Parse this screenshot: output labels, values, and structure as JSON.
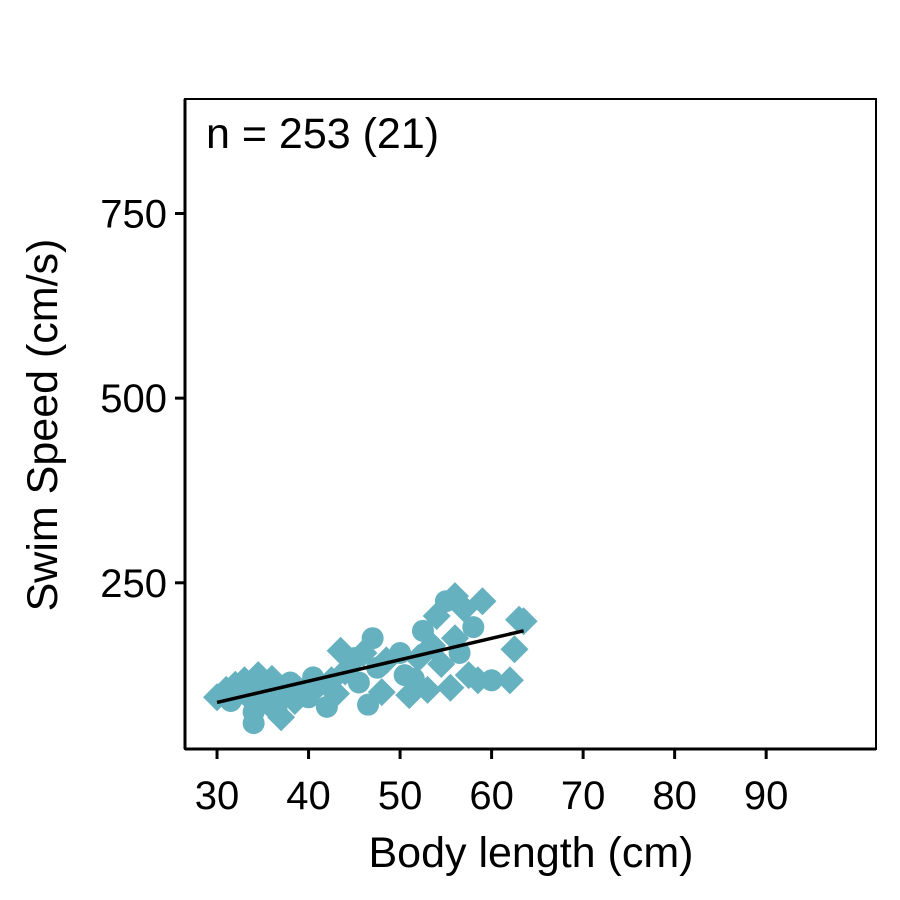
{
  "chart_data": {
    "type": "scatter",
    "annotation": "n = 253 (21)",
    "xlabel": "Body length (cm)",
    "ylabel": "Swim Speed (cm/s)",
    "xlim": [
      26.5,
      102
    ],
    "ylim": [
      25,
      905
    ],
    "xticks": [
      30,
      40,
      50,
      60,
      70,
      80,
      90
    ],
    "yticks": [
      250,
      500,
      750
    ],
    "grid": false,
    "point_color": "#66b1bf",
    "line_color": "#000000",
    "fit_line": {
      "x": [
        30,
        63.5
      ],
      "y": [
        88,
        185
      ]
    },
    "points": [
      {
        "x": 30,
        "y": 95,
        "shape": "diamond"
      },
      {
        "x": 31,
        "y": 105,
        "shape": "diamond"
      },
      {
        "x": 31.5,
        "y": 90,
        "shape": "circle"
      },
      {
        "x": 32,
        "y": 112,
        "shape": "diamond"
      },
      {
        "x": 32.5,
        "y": 100,
        "shape": "circle"
      },
      {
        "x": 33,
        "y": 118,
        "shape": "diamond"
      },
      {
        "x": 33.5,
        "y": 95,
        "shape": "diamond"
      },
      {
        "x": 34,
        "y": 75,
        "shape": "circle"
      },
      {
        "x": 34,
        "y": 60,
        "shape": "circle"
      },
      {
        "x": 34.5,
        "y": 125,
        "shape": "diamond"
      },
      {
        "x": 35,
        "y": 108,
        "shape": "circle"
      },
      {
        "x": 35.5,
        "y": 88,
        "shape": "diamond"
      },
      {
        "x": 36,
        "y": 120,
        "shape": "diamond"
      },
      {
        "x": 36.5,
        "y": 78,
        "shape": "circle"
      },
      {
        "x": 37,
        "y": 100,
        "shape": "diamond"
      },
      {
        "x": 37,
        "y": 68,
        "shape": "diamond"
      },
      {
        "x": 38,
        "y": 115,
        "shape": "circle"
      },
      {
        "x": 38.5,
        "y": 90,
        "shape": "diamond"
      },
      {
        "x": 39,
        "y": 105,
        "shape": "diamond"
      },
      {
        "x": 40,
        "y": 95,
        "shape": "circle"
      },
      {
        "x": 40.5,
        "y": 122,
        "shape": "circle"
      },
      {
        "x": 41,
        "y": 110,
        "shape": "diamond"
      },
      {
        "x": 42,
        "y": 82,
        "shape": "circle"
      },
      {
        "x": 42.5,
        "y": 118,
        "shape": "diamond"
      },
      {
        "x": 43,
        "y": 100,
        "shape": "diamond"
      },
      {
        "x": 43.5,
        "y": 158,
        "shape": "diamond"
      },
      {
        "x": 44,
        "y": 130,
        "shape": "diamond"
      },
      {
        "x": 45,
        "y": 148,
        "shape": "circle"
      },
      {
        "x": 45.5,
        "y": 115,
        "shape": "circle"
      },
      {
        "x": 46,
        "y": 155,
        "shape": "diamond"
      },
      {
        "x": 46.5,
        "y": 85,
        "shape": "circle"
      },
      {
        "x": 47,
        "y": 175,
        "shape": "circle"
      },
      {
        "x": 47.5,
        "y": 135,
        "shape": "circle"
      },
      {
        "x": 48,
        "y": 102,
        "shape": "diamond"
      },
      {
        "x": 48.5,
        "y": 145,
        "shape": "diamond"
      },
      {
        "x": 50,
        "y": 155,
        "shape": "circle"
      },
      {
        "x": 50.5,
        "y": 125,
        "shape": "circle"
      },
      {
        "x": 51,
        "y": 98,
        "shape": "diamond"
      },
      {
        "x": 51.5,
        "y": 120,
        "shape": "circle"
      },
      {
        "x": 52,
        "y": 148,
        "shape": "diamond"
      },
      {
        "x": 52.5,
        "y": 185,
        "shape": "circle"
      },
      {
        "x": 53,
        "y": 105,
        "shape": "diamond"
      },
      {
        "x": 53.5,
        "y": 165,
        "shape": "diamond"
      },
      {
        "x": 54,
        "y": 205,
        "shape": "diamond"
      },
      {
        "x": 54.5,
        "y": 140,
        "shape": "diamond"
      },
      {
        "x": 55,
        "y": 225,
        "shape": "circle"
      },
      {
        "x": 55.5,
        "y": 108,
        "shape": "diamond"
      },
      {
        "x": 56,
        "y": 232,
        "shape": "diamond"
      },
      {
        "x": 56,
        "y": 175,
        "shape": "diamond"
      },
      {
        "x": 56.5,
        "y": 155,
        "shape": "circle"
      },
      {
        "x": 57,
        "y": 215,
        "shape": "diamond"
      },
      {
        "x": 57.5,
        "y": 125,
        "shape": "diamond"
      },
      {
        "x": 58,
        "y": 190,
        "shape": "circle"
      },
      {
        "x": 58.5,
        "y": 118,
        "shape": "diamond"
      },
      {
        "x": 59,
        "y": 225,
        "shape": "diamond"
      },
      {
        "x": 60,
        "y": 118,
        "shape": "circle"
      },
      {
        "x": 62,
        "y": 118,
        "shape": "diamond"
      },
      {
        "x": 62.5,
        "y": 160,
        "shape": "diamond"
      },
      {
        "x": 63,
        "y": 200,
        "shape": "diamond"
      },
      {
        "x": 63.5,
        "y": 198,
        "shape": "diamond"
      }
    ]
  }
}
